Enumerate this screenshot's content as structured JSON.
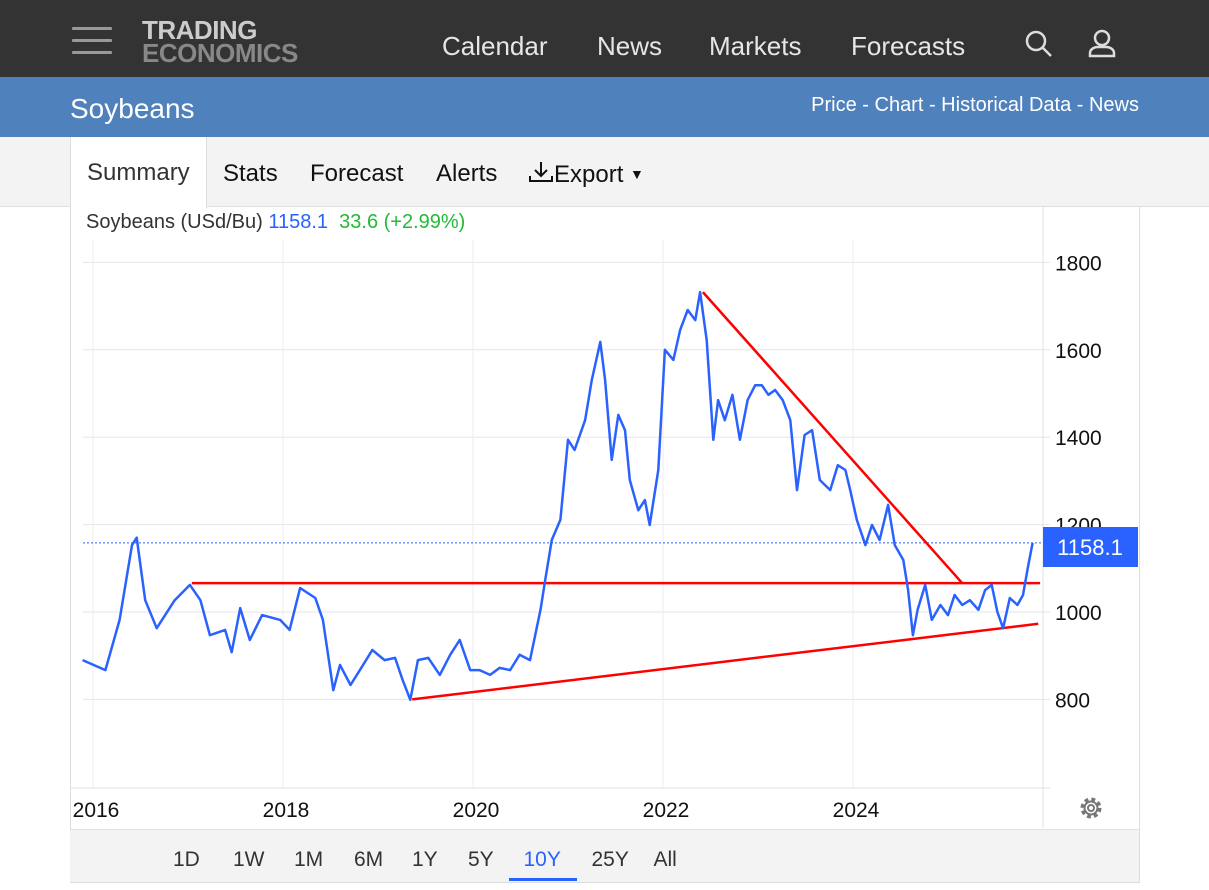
{
  "header": {
    "logo_line1": "TRADING",
    "logo_line2": "ECONOMICS",
    "nav": [
      "Calendar",
      "News",
      "Markets",
      "Forecasts"
    ]
  },
  "page": {
    "title": "Soybeans",
    "sublinks": "Price - Chart - Historical Data - News"
  },
  "tabs": [
    "Summary",
    "Stats",
    "Forecast",
    "Alerts",
    "Export"
  ],
  "legend": {
    "name": "Soybeans (USd/Bu)",
    "price": "1158.1",
    "change": "33.6 (+2.99%)"
  },
  "price_label": "1158.1",
  "ranges": [
    "1D",
    "1W",
    "1M",
    "6M",
    "1Y",
    "5Y",
    "10Y",
    "25Y",
    "All"
  ],
  "selected_range": "10Y",
  "colors": {
    "series": "#2962ff",
    "trend": "#ff0000",
    "header": "#333333",
    "banner": "#4f81bd",
    "up": "#22bb33"
  },
  "chart_data": {
    "type": "line",
    "title": "Soybeans (USd/Bu)",
    "xlabel": "",
    "ylabel": "",
    "xlim": [
      2015.89,
      2025.97
    ],
    "ylim": [
      610,
      1850
    ],
    "x_ticks": [
      "2016",
      "2018",
      "2020",
      "2022",
      "2024"
    ],
    "y_ticks": [
      "800",
      "1000",
      "1200",
      "1400",
      "1600",
      "1800"
    ],
    "grid": true,
    "series": [
      {
        "name": "Soybeans",
        "x": [
          2015.89,
          2016.13,
          2016.28,
          2016.41,
          2016.46,
          2016.55,
          2016.67,
          2016.86,
          2017.02,
          2017.13,
          2017.23,
          2017.39,
          2017.46,
          2017.55,
          2017.65,
          2017.78,
          2017.97,
          2018.07,
          2018.18,
          2018.34,
          2018.42,
          2018.53,
          2018.6,
          2018.71,
          2018.81,
          2018.94,
          2019.07,
          2019.18,
          2019.26,
          2019.34,
          2019.42,
          2019.53,
          2019.65,
          2019.76,
          2019.86,
          2019.97,
          2020.07,
          2020.18,
          2020.28,
          2020.39,
          2020.49,
          2020.6,
          2020.71,
          2020.76,
          2020.83,
          2020.92,
          2021.0,
          2021.07,
          2021.18,
          2021.25,
          2021.34,
          2021.39,
          2021.46,
          2021.53,
          2021.6,
          2021.65,
          2021.74,
          2021.81,
          2021.86,
          2021.95,
          2022.02,
          2022.11,
          2022.18,
          2022.26,
          2022.34,
          2022.39,
          2022.46,
          2022.53,
          2022.58,
          2022.65,
          2022.73,
          2022.81,
          2022.89,
          2022.97,
          2023.04,
          2023.11,
          2023.18,
          2023.26,
          2023.34,
          2023.41,
          2023.49,
          2023.57,
          2023.65,
          2023.76,
          2023.84,
          2023.92,
          2023.97,
          2024.04,
          2024.13,
          2024.2,
          2024.28,
          2024.37,
          2024.44,
          2024.53,
          2024.58,
          2024.63,
          2024.68,
          2024.76,
          2024.83,
          2024.92,
          2025.0,
          2025.07,
          2025.15,
          2025.23,
          2025.32,
          2025.39,
          2025.46,
          2025.52,
          2025.58,
          2025.65,
          2025.73,
          2025.79,
          2025.84,
          2025.89
        ],
        "values": [
          890,
          867,
          982,
          1153,
          1170,
          1027,
          963,
          1027,
          1062,
          1027,
          947,
          959,
          908,
          1009,
          936,
          993,
          982,
          959,
          1055,
          1032,
          982,
          821,
          879,
          833,
          867,
          913,
          890,
          895,
          844,
          799,
          890,
          895,
          856,
          902,
          936,
          867,
          867,
          856,
          872,
          867,
          902,
          890,
          1005,
          1073,
          1165,
          1211,
          1394,
          1371,
          1439,
          1531,
          1618,
          1531,
          1348,
          1451,
          1416,
          1302,
          1233,
          1256,
          1199,
          1325,
          1600,
          1577,
          1645,
          1691,
          1668,
          1732,
          1622,
          1394,
          1485,
          1439,
          1497,
          1394,
          1485,
          1519,
          1519,
          1497,
          1508,
          1485,
          1439,
          1279,
          1405,
          1416,
          1302,
          1279,
          1336,
          1325,
          1279,
          1211,
          1153,
          1199,
          1165,
          1245,
          1153,
          1119,
          1050,
          947,
          1005,
          1062,
          982,
          1016,
          993,
          1039,
          1016,
          1027,
          1005,
          1050,
          1062,
          1000,
          963,
          1032,
          1016,
          1039,
          1101,
          1158.1
        ]
      }
    ],
    "annotations": [
      {
        "type": "trendline",
        "name": "resistance-horizontal",
        "points": [
          [
            2017.04,
            1066
          ],
          [
            2025.97,
            1066
          ]
        ]
      },
      {
        "type": "trendline",
        "name": "support-rising",
        "points": [
          [
            2019.36,
            800
          ],
          [
            2025.95,
            973
          ]
        ]
      },
      {
        "type": "trendline",
        "name": "resistance-falling",
        "points": [
          [
            2022.42,
            1732
          ],
          [
            2025.15,
            1066
          ]
        ]
      }
    ],
    "last_value_line": 1158.1
  }
}
